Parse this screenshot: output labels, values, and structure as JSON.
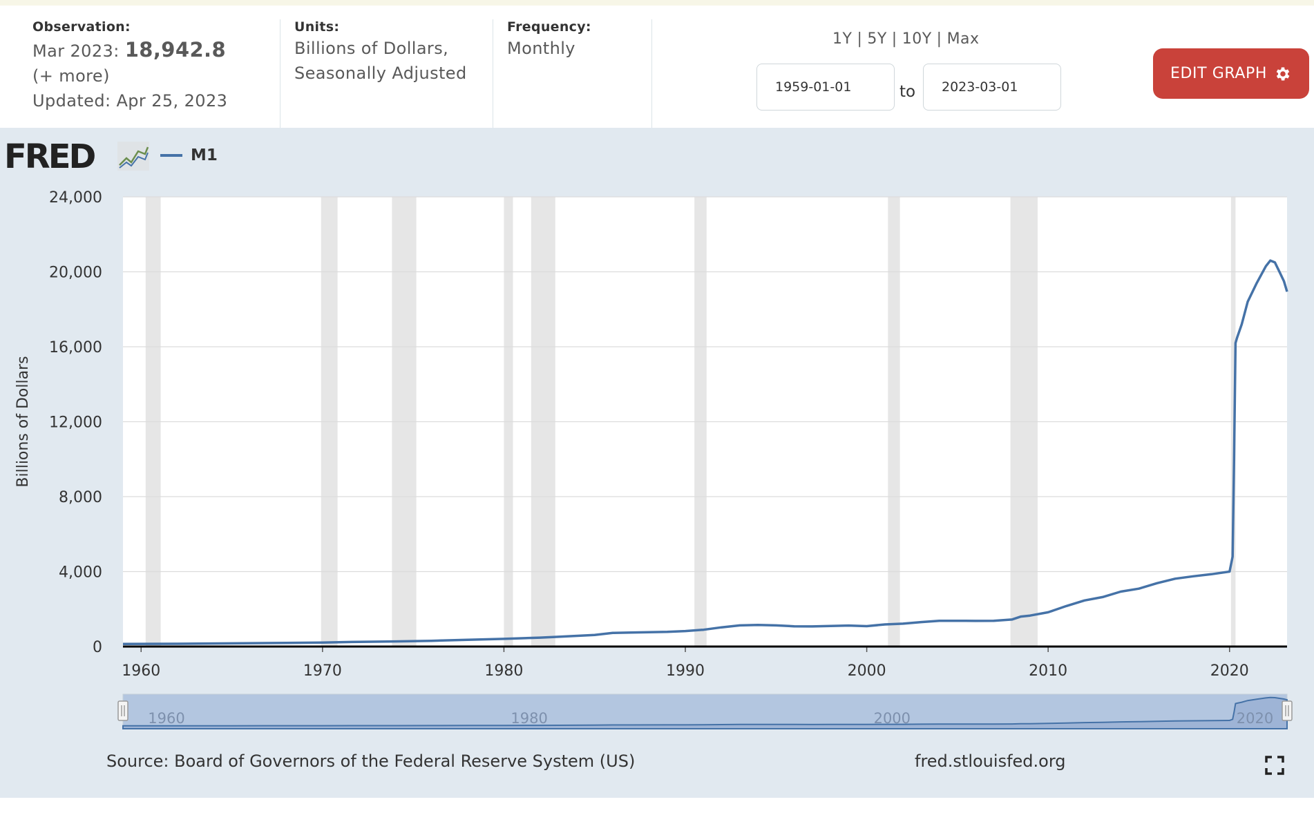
{
  "header": {
    "observation_label": "Observation:",
    "observation_date": "Mar 2023:",
    "observation_value": "18,942.8",
    "more_link": "(+ more)",
    "updated": "Updated: Apr 25, 2023",
    "units_label": "Units:",
    "units_line1": "Billions of Dollars,",
    "units_line2": "Seasonally Adjusted",
    "frequency_label": "Frequency:",
    "frequency_value": "Monthly"
  },
  "range": {
    "links": [
      "1Y",
      "5Y",
      "10Y",
      "Max"
    ],
    "start_date": "1959-01-01",
    "to_label": "to",
    "end_date": "2023-03-01"
  },
  "edit_button": {
    "label": "EDIT GRAPH",
    "icon": "gear-icon",
    "color": "#c9423a"
  },
  "logo": {
    "text": "FRED",
    "icon": "trend-chart-icon"
  },
  "footer": {
    "source": "Source: Board of Governors of the Federal Reserve System (US)",
    "site": "fred.stlouisfed.org",
    "fullscreen_icon": "fullscreen-icon"
  },
  "chart_data": {
    "type": "line",
    "title": "",
    "xlabel": "",
    "ylabel": "Billions of Dollars",
    "xlim": [
      1959.0,
      2023.17
    ],
    "ylim": [
      0,
      24000
    ],
    "yticks": [
      0,
      4000,
      8000,
      12000,
      16000,
      20000,
      24000
    ],
    "ytick_labels": [
      "0",
      "4,000",
      "8,000",
      "12,000",
      "16,000",
      "20,000",
      "24,000"
    ],
    "xticks": [
      1960,
      1970,
      1980,
      1990,
      2000,
      2010,
      2020
    ],
    "grid": true,
    "legend_position": "top-left",
    "series_color": "#4572a7",
    "recession_color": "#e6e6e6",
    "recessions": [
      [
        1960.25,
        1961.08
      ],
      [
        1969.92,
        1970.83
      ],
      [
        1973.83,
        1975.17
      ],
      [
        1980.0,
        1980.5
      ],
      [
        1981.5,
        1982.83
      ],
      [
        1990.5,
        1991.17
      ],
      [
        2001.17,
        2001.83
      ],
      [
        2007.92,
        2009.42
      ],
      [
        2020.08,
        2020.33
      ]
    ],
    "series": [
      {
        "name": "M1",
        "x": [
          1959.0,
          1962.0,
          1965.0,
          1968.0,
          1970.0,
          1972.0,
          1974.0,
          1976.0,
          1978.0,
          1980.0,
          1982.0,
          1983.0,
          1985.0,
          1986.0,
          1987.0,
          1989.0,
          1990.0,
          1991.0,
          1992.0,
          1993.0,
          1994.0,
          1995.0,
          1996.0,
          1997.0,
          1998.0,
          1999.0,
          2000.0,
          2001.0,
          2002.0,
          2003.0,
          2004.0,
          2005.0,
          2006.0,
          2007.0,
          2008.0,
          2008.5,
          2009.0,
          2010.0,
          2011.0,
          2012.0,
          2013.0,
          2014.0,
          2015.0,
          2016.0,
          2017.0,
          2018.0,
          2019.0,
          2020.0,
          2020.17,
          2020.25,
          2020.33,
          2020.42,
          2020.67,
          2021.0,
          2021.5,
          2022.0,
          2022.25,
          2022.5,
          2022.75,
          2023.0,
          2023.17
        ],
        "y": [
          140,
          147,
          168,
          197,
          214,
          249,
          274,
          306,
          357,
          408,
          474,
          521,
          620,
          725,
          750,
          787,
          824,
          897,
          1025,
          1129,
          1150,
          1127,
          1081,
          1072,
          1095,
          1122,
          1087,
          1180,
          1220,
          1306,
          1376,
          1375,
          1367,
          1375,
          1440,
          1600,
          1650,
          1830,
          2160,
          2460,
          2640,
          2930,
          3090,
          3380,
          3620,
          3750,
          3860,
          4000,
          4800,
          10000,
          16200,
          16500,
          17200,
          18400,
          19400,
          20300,
          20600,
          20500,
          20000,
          19500,
          18942.8
        ]
      }
    ],
    "navigator": {
      "labels": [
        "1960",
        "1980",
        "2000",
        "2020"
      ],
      "label_years": [
        1960,
        1980,
        2000,
        2020
      ]
    }
  }
}
